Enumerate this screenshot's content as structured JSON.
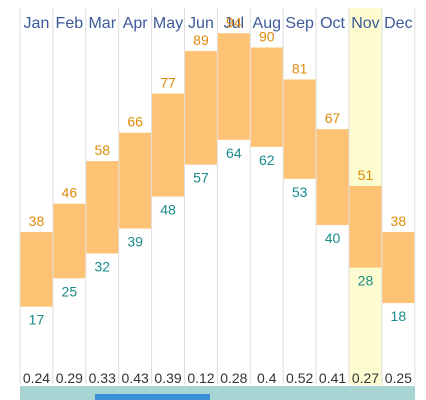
{
  "chart_data": {
    "type": "bar",
    "categories": [
      "Jan",
      "Feb",
      "Mar",
      "Apr",
      "May",
      "Jun",
      "Jul",
      "Aug",
      "Sep",
      "Oct",
      "Nov",
      "Dec"
    ],
    "series": [
      {
        "values": [
          38,
          46,
          58,
          66,
          77,
          89,
          94,
          90,
          81,
          67,
          51,
          38
        ]
      },
      {
        "values": [
          17,
          25,
          32,
          39,
          48,
          57,
          64,
          62,
          53,
          40,
          28,
          18
        ]
      }
    ],
    "precipitation": [
      "0.24",
      "0.29",
      "0.33",
      "0.43",
      "0.39",
      "0.12",
      "0.28",
      "0.4",
      "0.52",
      "0.41",
      "0.27",
      "0.25"
    ],
    "highlighted_category": "Nov",
    "ylim": [
      10,
      100
    ],
    "grid": true
  },
  "colors": {
    "bar_fill": "#fdc274",
    "highlight_fill": "#fdfcd0",
    "month_text": "#3b5a9a",
    "high_text": "#e08a0a",
    "low_text": "#1a8a8a",
    "grid_line": "#dddddd",
    "bottom_strip": "#a8d4d4",
    "bottom_accent": "#3a8fd8"
  }
}
